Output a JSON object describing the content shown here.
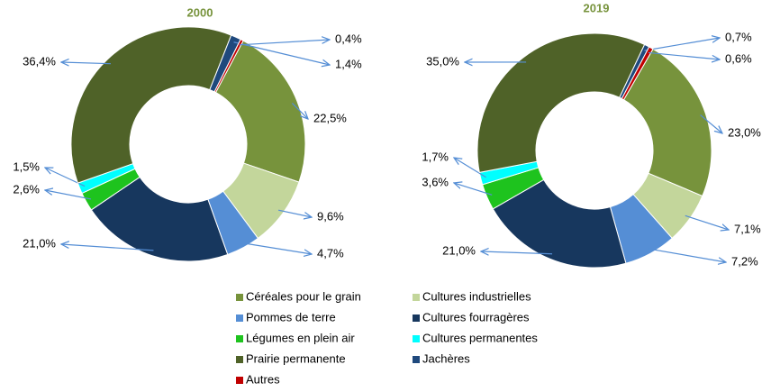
{
  "chart_data": [
    {
      "type": "pie",
      "title": "2000",
      "values": [
        22.5,
        9.6,
        4.7,
        21.0,
        2.6,
        1.5,
        36.4,
        1.4,
        0.4
      ],
      "value_labels": [
        "22,5%",
        "9,6%",
        "4,7%",
        "21,0%",
        "2,6%",
        "1,5%",
        "36,4%",
        "1,4%",
        "0,4%"
      ]
    },
    {
      "type": "pie",
      "title": "2019",
      "values": [
        23.0,
        7.1,
        7.2,
        21.0,
        3.6,
        1.7,
        35.0,
        0.7,
        0.6
      ],
      "value_labels": [
        "23,0%",
        "7,1%",
        "7,2%",
        "21,0%",
        "3,6%",
        "1,7%",
        "35,0%",
        "0,7%",
        "0,6%"
      ]
    }
  ],
  "legend": {
    "categories": [
      "Céréales pour le grain",
      "Cultures industrielles",
      "Pommes de terre",
      "Cultures fourragères",
      "Légumes en plein air",
      "Cultures permanentes",
      "Prairie permanente",
      "Jachères",
      "Autres"
    ],
    "colors": [
      "#77933c",
      "#c3d69b",
      "#558ed5",
      "#17375e",
      "#1ec31e",
      "#00ffff",
      "#4f6228",
      "#1f497d",
      "#c00000"
    ]
  }
}
